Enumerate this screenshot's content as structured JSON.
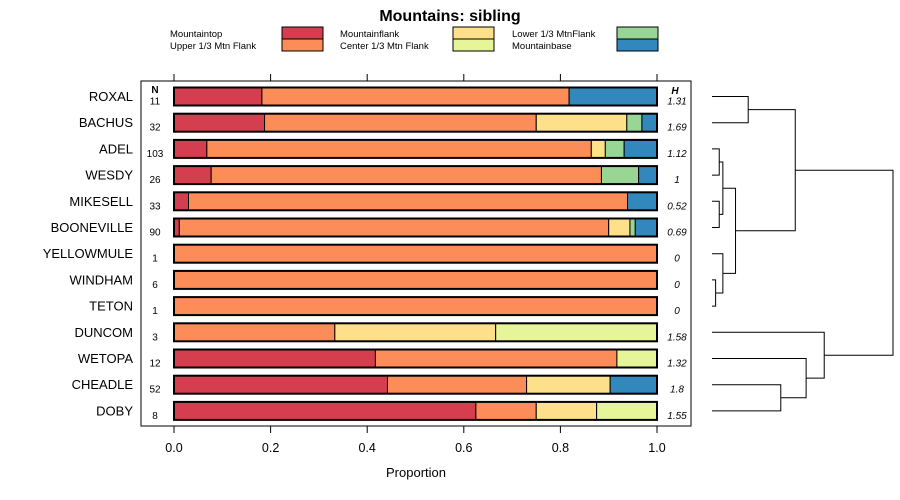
{
  "chart_data": {
    "type": "stacked-bar-horizontal",
    "title": "Mountains: sibling",
    "xlabel": "Proportion",
    "ylabel": "",
    "xlim": [
      0,
      1
    ],
    "xticks": [
      "0.0",
      "0.2",
      "0.4",
      "0.6",
      "0.8",
      "1.0"
    ],
    "xtick_values": [
      0,
      0.2,
      0.4,
      0.6,
      0.8,
      1.0
    ],
    "n_header": "N",
    "h_header": "H",
    "legend": [
      {
        "label": "Mountaintop",
        "color": "#d53e4f"
      },
      {
        "label": "Upper 1/3 Mtn Flank",
        "color": "#fc8d59"
      },
      {
        "label": "Mountainflank",
        "color": "#fee08b"
      },
      {
        "label": "Center 1/3 Mtn Flank",
        "color": "#e6f598"
      },
      {
        "label": "Lower 1/3 MtnFlank",
        "color": "#99d594"
      },
      {
        "label": "Mountainbase",
        "color": "#3288bd"
      }
    ],
    "rows": [
      {
        "name": "ROXAL",
        "n": "11",
        "h": "1.31",
        "values": [
          0.182,
          0.636,
          0,
          0,
          0,
          0.182
        ]
      },
      {
        "name": "BACHUS",
        "n": "32",
        "h": "1.69",
        "values": [
          0.1875,
          0.5625,
          0.1875,
          0,
          0.03125,
          0.03125
        ]
      },
      {
        "name": "ADEL",
        "n": "103",
        "h": "1.12",
        "values": [
          0.068,
          0.796,
          0.029,
          0,
          0.039,
          0.068
        ]
      },
      {
        "name": "WESDY",
        "n": "26",
        "h": "1",
        "values": [
          0.077,
          0.808,
          0,
          0,
          0.077,
          0.038
        ]
      },
      {
        "name": "MIKESELL",
        "n": "33",
        "h": "0.52",
        "values": [
          0.03,
          0.909,
          0,
          0,
          0,
          0.061
        ]
      },
      {
        "name": "BOONEVILLE",
        "n": "90",
        "h": "0.69",
        "values": [
          0.011,
          0.889,
          0.044,
          0,
          0.011,
          0.044
        ]
      },
      {
        "name": "YELLOWMULE",
        "n": "1",
        "h": "0",
        "values": [
          0,
          1,
          0,
          0,
          0,
          0
        ]
      },
      {
        "name": "WINDHAM",
        "n": "6",
        "h": "0",
        "values": [
          0,
          1,
          0,
          0,
          0,
          0
        ]
      },
      {
        "name": "TETON",
        "n": "1",
        "h": "0",
        "values": [
          0,
          1,
          0,
          0,
          0,
          0
        ]
      },
      {
        "name": "DUNCOM",
        "n": "3",
        "h": "1.58",
        "values": [
          0,
          0.333,
          0.333,
          0.334,
          0,
          0
        ]
      },
      {
        "name": "WETOPA",
        "n": "12",
        "h": "1.32",
        "values": [
          0.417,
          0.5,
          0,
          0.083,
          0,
          0
        ]
      },
      {
        "name": "CHEADLE",
        "n": "52",
        "h": "1.8",
        "values": [
          0.442,
          0.288,
          0.173,
          0,
          0,
          0.097
        ]
      },
      {
        "name": "DOBY",
        "n": "8",
        "h": "1.55",
        "values": [
          0.625,
          0.125,
          0.125,
          0.125,
          0,
          0
        ]
      }
    ],
    "dendrogram": {
      "leaf_order": [
        "ROXAL",
        "BACHUS",
        "ADEL",
        "WESDY",
        "MIKESELL",
        "BOONEVILLE",
        "YELLOWMULE",
        "WINDHAM",
        "TETON",
        "DUNCOM",
        "WETOPA",
        "CHEADLE",
        "DOBY"
      ],
      "merges": [
        {
          "a": "ADEL",
          "b": "WESDY",
          "height": 0.04
        },
        {
          "a": "MIKESELL",
          "b": "BOONEVILLE",
          "height": 0.04
        },
        {
          "a": "WINDHAM",
          "b": "TETON",
          "height": 0.02
        },
        {
          "a": "YELLOWMULE",
          "b": "m3",
          "height": 0.06
        },
        {
          "a": "m1",
          "b": "m2",
          "height": 0.06
        },
        {
          "a": "m5",
          "b": "m4",
          "height": 0.13
        },
        {
          "a": "ROXAL",
          "b": "BACHUS",
          "height": 0.2
        },
        {
          "a": "m7",
          "b": "m6",
          "height": 0.46
        },
        {
          "a": "CHEADLE",
          "b": "DOBY",
          "height": 0.38
        },
        {
          "a": "WETOPA",
          "b": "m9",
          "height": 0.52
        },
        {
          "a": "DUNCOM",
          "b": "m10",
          "height": 0.62
        },
        {
          "a": "m8",
          "b": "m11",
          "height": 1.0
        }
      ]
    }
  }
}
